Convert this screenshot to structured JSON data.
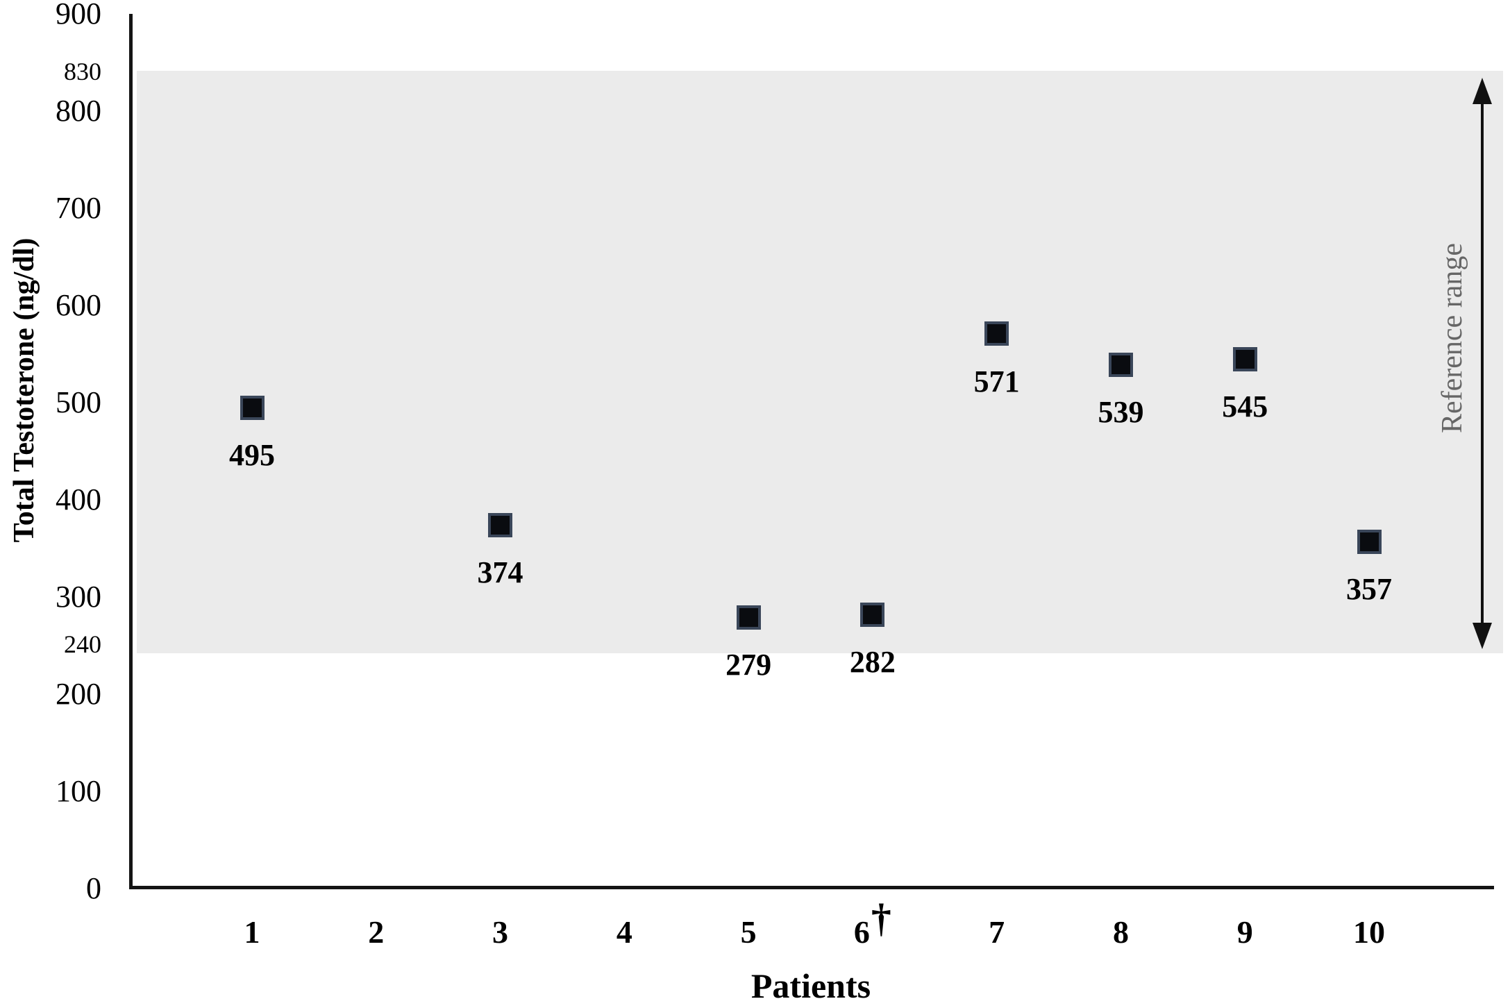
{
  "figure": {
    "background": "#ffffff",
    "band_color": "#ebebeb",
    "marker_fill": "#0a0c10",
    "marker_border": "#3a4659",
    "reference_label_color": "#666666"
  },
  "chart_data": {
    "type": "scatter",
    "title": "",
    "xlabel": "Patients",
    "ylabel": "Total Testoterone (ng/dl)",
    "x_categories": [
      "1",
      "2",
      "3",
      "4",
      "5",
      "6",
      "7",
      "8",
      "9",
      "10"
    ],
    "points": [
      {
        "patient": "1",
        "value": 495
      },
      {
        "patient": "3",
        "value": 374
      },
      {
        "patient": "5",
        "value": 279
      },
      {
        "patient": "6",
        "value": 282
      },
      {
        "patient": "7",
        "value": 571
      },
      {
        "patient": "8",
        "value": 539
      },
      {
        "patient": "9",
        "value": 545
      },
      {
        "patient": "10",
        "value": 357
      }
    ],
    "y_ticks": [
      900,
      830,
      800,
      700,
      600,
      500,
      400,
      300,
      240,
      200,
      100,
      0
    ],
    "y_emphasis_ticks": [
      830,
      240
    ],
    "ylim": [
      0,
      900
    ],
    "grid": false,
    "legend_position": "none",
    "marker_shape": "filled-square",
    "reference_range": {
      "low": 240,
      "high": 830,
      "label": "Reference range"
    },
    "deceased_marker": {
      "patient": "6",
      "symbol": "†"
    }
  }
}
